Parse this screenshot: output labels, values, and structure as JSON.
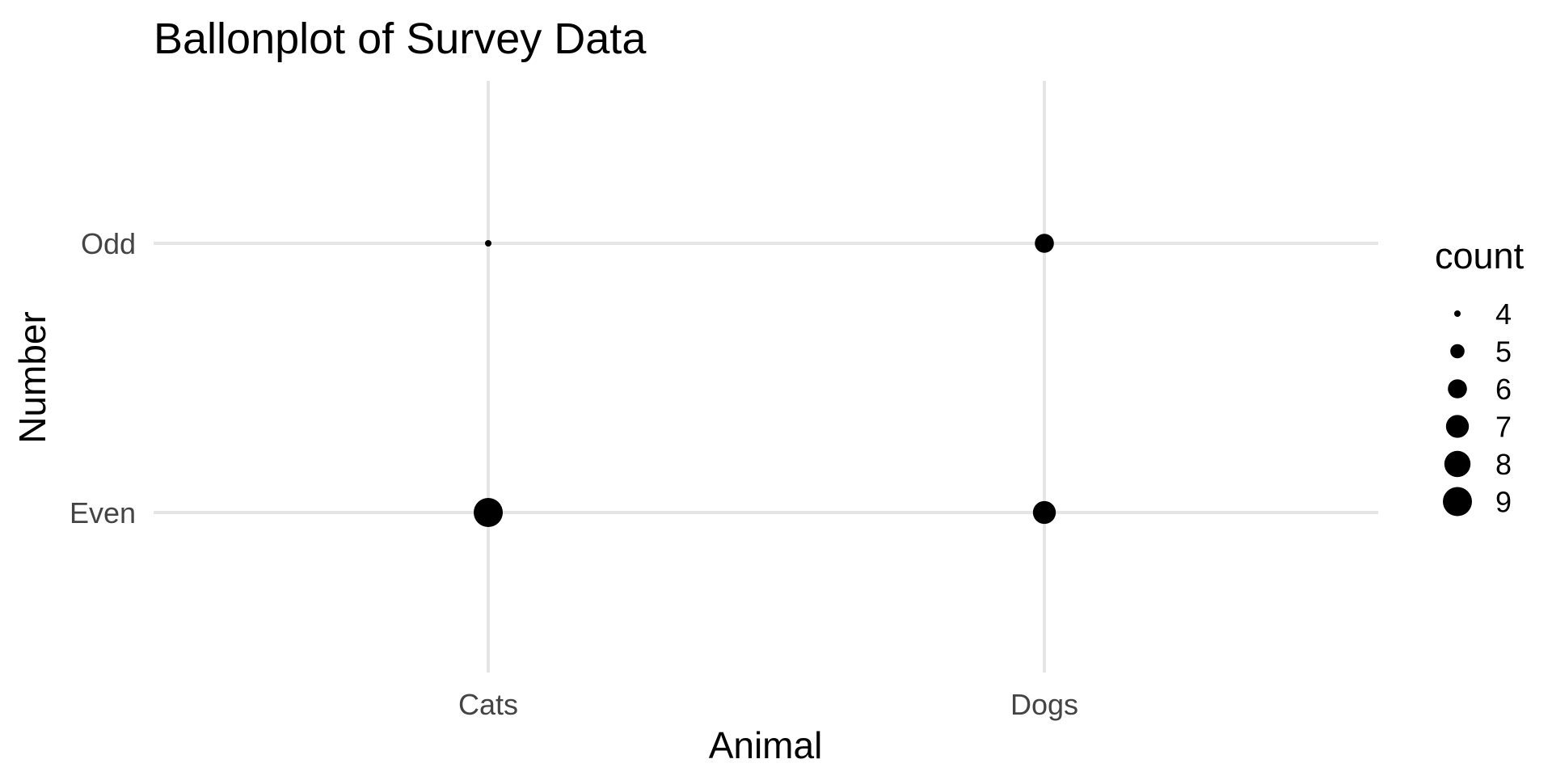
{
  "chart_data": {
    "type": "scatter",
    "title": "Ballonplot of Survey Data",
    "xlabel": "Animal",
    "ylabel": "Number",
    "x_categories": [
      "Cats",
      "Dogs"
    ],
    "y_categories": [
      "Even",
      "Odd"
    ],
    "points": [
      {
        "x": "Cats",
        "y": "Odd",
        "count": 4
      },
      {
        "x": "Dogs",
        "y": "Odd",
        "count": 6
      },
      {
        "x": "Cats",
        "y": "Even",
        "count": 9
      },
      {
        "x": "Dogs",
        "y": "Even",
        "count": 7
      }
    ],
    "legend": {
      "title": "count",
      "placement": "right",
      "values": [
        4,
        5,
        6,
        7,
        8,
        9
      ]
    },
    "point_color": "#000000",
    "grid": true,
    "grid_color": "#e5e5e5"
  }
}
